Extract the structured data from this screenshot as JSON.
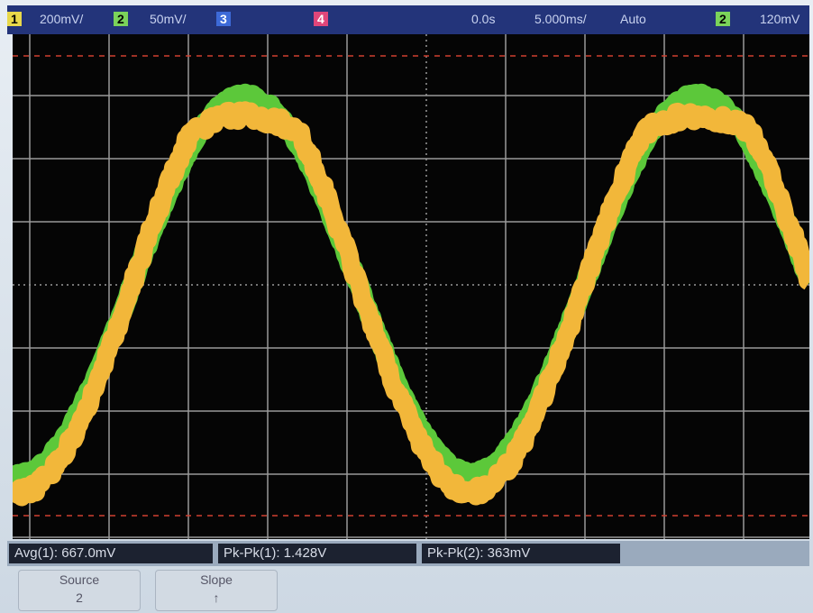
{
  "status_bar": {
    "channel_1": "1",
    "channel_1_scale": "200mV/",
    "channel_2": "2",
    "channel_2_scale": "50mV/",
    "channel_3": "3",
    "channel_4": "4",
    "time_offset": "0.0s",
    "time_scale": "5.000ms/",
    "trigger_mode": "Auto",
    "trigger_source": "2",
    "trigger_level": "120mV"
  },
  "measurements": [
    "Avg(1): 667.0mV",
    "Pk-Pk(1): 1.428V",
    "Pk-Pk(2): 363mV"
  ],
  "softkeys": [
    {
      "label": "Source",
      "value": "2"
    },
    {
      "label": "Slope",
      "value": "↑"
    }
  ]
}
